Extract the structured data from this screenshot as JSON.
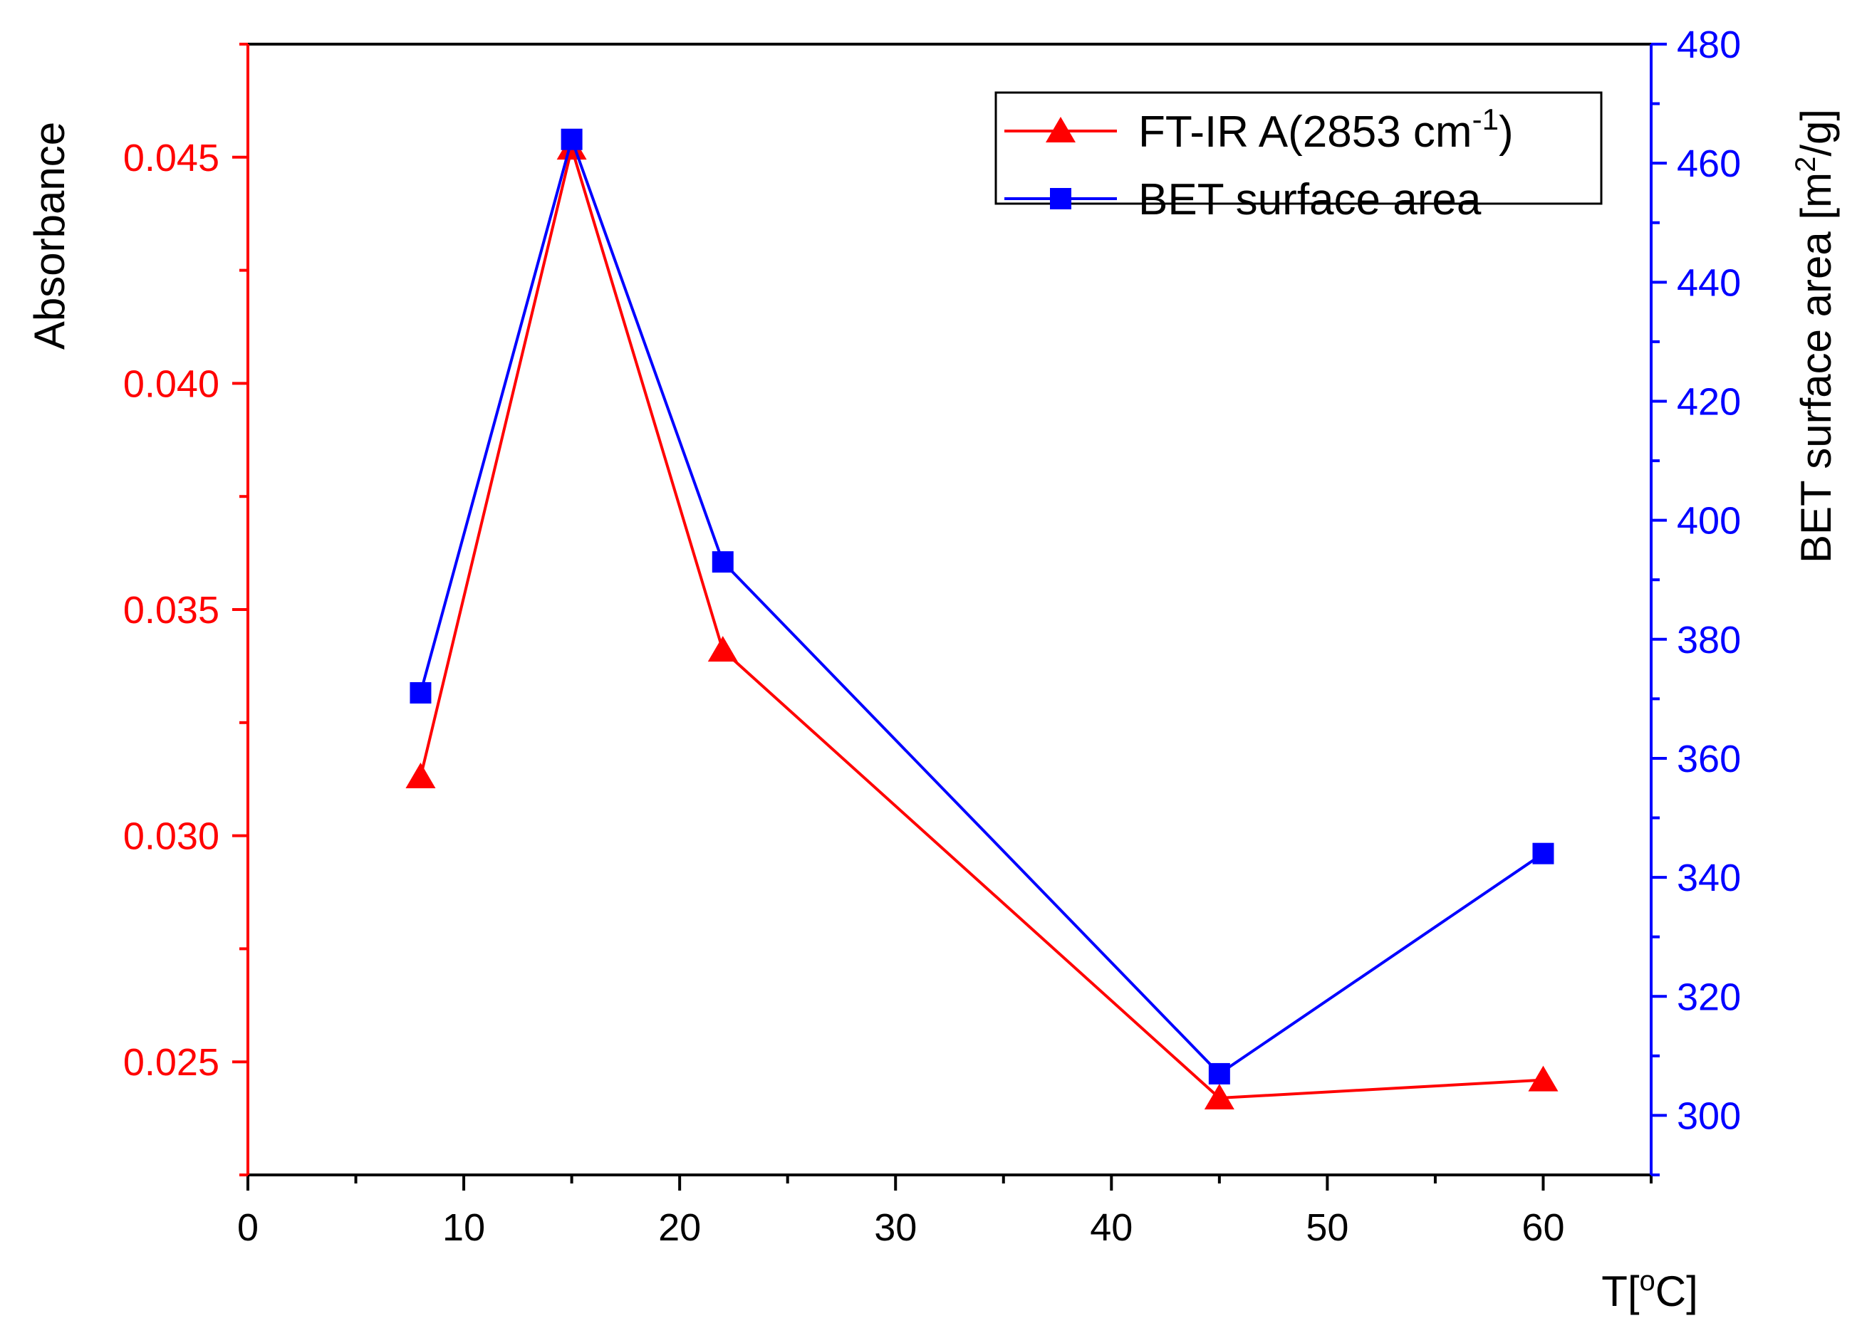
{
  "chart_data": {
    "type": "line",
    "xlabel": {
      "main": "T[",
      "sup": "o",
      "tail": "C]"
    },
    "ylabel_left": "Absorbance",
    "ylabel_right": {
      "main": "BET surface area [m",
      "sup": "2",
      "tail": "/g]"
    },
    "xlim": [
      0,
      65
    ],
    "ylim_left": [
      0.0225,
      0.0475
    ],
    "ylim_right": [
      290,
      480
    ],
    "x_ticks": [
      "0",
      "10",
      "20",
      "30",
      "40",
      "50",
      "60"
    ],
    "y_left_ticks": [
      "0.025",
      "0.030",
      "0.035",
      "0.040",
      "0.045"
    ],
    "y_right_ticks": [
      "300",
      "320",
      "340",
      "360",
      "380",
      "400",
      "420",
      "440",
      "460",
      "480"
    ],
    "legend_position": "top-right",
    "series": [
      {
        "name": {
          "main": "FT-IR A(2853 cm",
          "sup": "-1",
          "tail": ")"
        },
        "axis": "left",
        "color": "#ff0000",
        "marker": "triangle",
        "x": [
          8,
          15,
          22,
          45,
          60
        ],
        "y": [
          0.0313,
          0.0452,
          0.0341,
          0.0242,
          0.0246
        ]
      },
      {
        "name": {
          "main": "BET surface area",
          "sup": "",
          "tail": ""
        },
        "axis": "right",
        "color": "#0000ff",
        "marker": "square",
        "x": [
          8,
          15,
          22,
          45,
          60
        ],
        "y": [
          371,
          464,
          393,
          307,
          344
        ]
      }
    ],
    "left_axis_color": "#ff0000",
    "right_axis_color": "#0000ff"
  }
}
